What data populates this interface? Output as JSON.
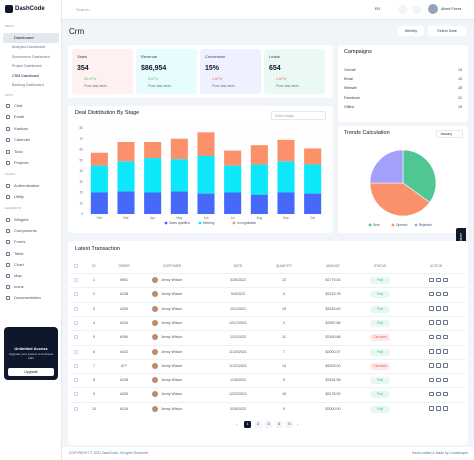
{
  "sidebar": {
    "logo": "DashCode",
    "menu_label": "MENU",
    "dashboard": "Dashboard",
    "dashboards": [
      "Analytics Dashboard",
      "Ecommerce Dashboard",
      "Project Dashboard",
      "CRM Dashboard",
      "Banking Dashboard"
    ],
    "apps_label": "APPS",
    "apps": [
      "Chat",
      "Email",
      "Kanban",
      "Calender",
      "Todo",
      "Projects"
    ],
    "pages_label": "PAGES",
    "pages": [
      "Authentication",
      "Utility"
    ],
    "elements_label": "ELEMENTS",
    "elements": [
      "Widgets",
      "Components",
      "Forms",
      "Table",
      "Chart",
      "Map",
      "Icons",
      "Documentation"
    ],
    "upgrade": {
      "title": "Unlimited Access",
      "text": "Upgrade your system to business plan",
      "button": "Upgrade"
    }
  },
  "topbar": {
    "search": "Search...",
    "language": "EN",
    "user": "Albert Flores"
  },
  "header": {
    "title": "Crm",
    "period": "Weekly",
    "date": "Select Date"
  },
  "stats": [
    {
      "label": "Sales",
      "value": "354",
      "change": "25.67%",
      "note": "From last week"
    },
    {
      "label": "Revenue",
      "value": "$86,954",
      "change": "8.67%",
      "note": "From last week"
    },
    {
      "label": "Conversion",
      "value": "15%",
      "change": "1.67%",
      "note": "From last week"
    },
    {
      "label": "Leads",
      "value": "654",
      "change": "1.67%",
      "note": "From last week"
    }
  ],
  "campaigns": {
    "title": "Campaigns",
    "rows": [
      [
        "Overall",
        "15"
      ],
      [
        "Email",
        "10"
      ],
      [
        "Website",
        "28"
      ],
      [
        "Facebook",
        "12"
      ],
      [
        "Offline",
        "15"
      ]
    ]
  },
  "chart_data": [
    {
      "type": "bar",
      "stacked": true,
      "title": "Deal Distribution By Stage",
      "select": "Select stage",
      "categories": [
        "Feb",
        "Mar",
        "Apr",
        "May",
        "Jun",
        "Jul",
        "Aug",
        "Sep",
        "Oct"
      ],
      "series": [
        {
          "name": "Sales qualified",
          "color": "#4669fa",
          "values": [
            20,
            21,
            20,
            21,
            19,
            20,
            18,
            20,
            19
          ]
        },
        {
          "name": "Meeting",
          "color": "#0ce7fa",
          "values": [
            25,
            28,
            32,
            30,
            35,
            25,
            28,
            29,
            27
          ]
        },
        {
          "name": "In negotiation",
          "color": "#fa916b",
          "values": [
            12,
            18,
            15,
            19,
            22,
            14,
            18,
            20,
            15
          ]
        }
      ],
      "ylim": [
        0,
        80
      ],
      "yticks": [
        0,
        10,
        20,
        30,
        40,
        50,
        60,
        70,
        80
      ],
      "grid": true
    },
    {
      "type": "pie",
      "title": "Trends Calculation",
      "select": "January",
      "categories": [
        "Sent",
        "Opened",
        "Rejected"
      ],
      "values": [
        35,
        40,
        25
      ],
      "colors": [
        "#50c793",
        "#fa916b",
        "#a3a1fb"
      ]
    }
  ],
  "transactions": {
    "title": "Latest Transaction",
    "columns": [
      "ID",
      "ORDER",
      "CUSTOMER",
      "DATE",
      "QUANTITY",
      "AMOUNT",
      "STATUS",
      "ACTION"
    ],
    "rows": [
      [
        "1",
        "#951",
        "Jenny Wilson",
        "3/26/2022",
        "13",
        "$1779.53",
        "Paid"
      ],
      [
        "2",
        "#238",
        "Jenny Wilson",
        "5/4/2022",
        "4",
        "$2215.78",
        "Paid"
      ],
      [
        "3",
        "#339",
        "Jenny Wilson",
        "12/1/2021",
        "19",
        "$3183.60",
        "Paid"
      ],
      [
        "4",
        "#316",
        "Jenny Wilson",
        "12/17/2021",
        "2",
        "$2587.86",
        "Paid"
      ],
      [
        "5",
        "#396",
        "Jenny Wilson",
        "1/21/2022",
        "11",
        "$3160.88",
        "Canceled"
      ],
      [
        "6",
        "#433",
        "Jenny Wilson",
        "11/20/2021",
        "7",
        "$2000.97",
        "Paid"
      ],
      [
        "7",
        "#77",
        "Jenny Wilson",
        "11/22/2021",
        "14",
        "$4329.00",
        "Canceled"
      ],
      [
        "8",
        "#238",
        "Jenny Wilson",
        "1/15/2022",
        "6",
        "$3164.58",
        "Paid"
      ],
      [
        "9",
        "#339",
        "Jenny Wilson",
        "12/22/2021",
        "16",
        "$5178.59",
        "Paid"
      ],
      [
        "10",
        "#316",
        "Jenny Wilson",
        "3/26/2022",
        "9",
        "$2000.00",
        "Paid"
      ]
    ],
    "status_colors": {
      "Paid": "#50c793",
      "Canceled": "#f1595c"
    },
    "pages": [
      "1",
      "2",
      "3",
      "4",
      "5"
    ]
  },
  "customizer": "Customizer",
  "footer": {
    "left": "COPYRIGHT © 2022 DashCode, All rights Reserved",
    "right": "Hand-crafted & Made by Codeshaper"
  }
}
